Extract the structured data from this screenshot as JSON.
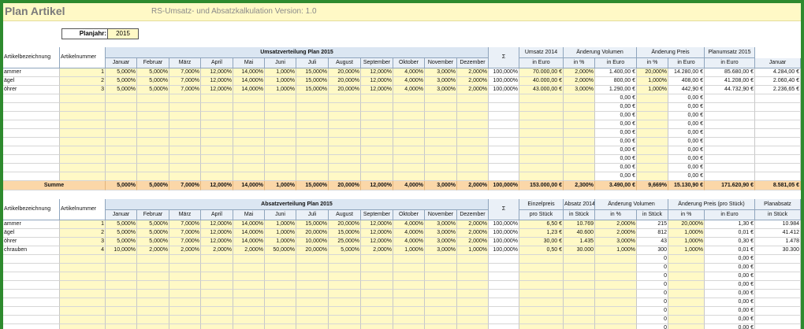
{
  "title": "Plan Artikel",
  "subtitle": "RS-Umsatz- und Absatzkalkulation Version:  1.0",
  "planjahr_label": "Planjahr:",
  "planjahr_value": "2015",
  "months": [
    "Januar",
    "Februar",
    "März",
    "April",
    "Mai",
    "Juni",
    "Juli",
    "August",
    "September",
    "Oktober",
    "November",
    "Dezember"
  ],
  "sigma": "Σ",
  "umsatz": {
    "header_title": "Umsatzverteilung Plan 2015",
    "col_artikel": "Artikelbezeichnung",
    "col_nummer": "Artikelnummer",
    "extra_top": [
      "Umsatz 2014",
      "Änderung Volumen",
      "Änderung Preis",
      "Planumsatz 2015"
    ],
    "extra_sub": [
      "in Euro",
      "in %",
      "in Euro",
      "in %",
      "in Euro",
      "in Euro",
      "Januar"
    ],
    "rows": [
      {
        "name": "ammer",
        "nr": "1",
        "m": [
          "5,000%",
          "5,000%",
          "7,000%",
          "12,000%",
          "14,000%",
          "1,000%",
          "15,000%",
          "20,000%",
          "12,000%",
          "4,000%",
          "3,000%",
          "2,000%"
        ],
        "total": "100,000%",
        "u2014": "70.000,00 €",
        "vol_pct": "2,000%",
        "vol_eur": "1.400,00 €",
        "preis_pct": "20,000%",
        "preis_eur": "14.280,00 €",
        "plan": "85.680,00 €",
        "jan": "4.284,00 €"
      },
      {
        "name": "ägel",
        "nr": "2",
        "m": [
          "5,000%",
          "5,000%",
          "7,000%",
          "12,000%",
          "14,000%",
          "1,000%",
          "15,000%",
          "20,000%",
          "12,000%",
          "4,000%",
          "3,000%",
          "2,000%"
        ],
        "total": "100,000%",
        "u2014": "40.000,00 €",
        "vol_pct": "2,000%",
        "vol_eur": "800,00 €",
        "preis_pct": "1,000%",
        "preis_eur": "408,00 €",
        "plan": "41.208,00 €",
        "jan": "2.060,40 €"
      },
      {
        "name": "öhrer",
        "nr": "3",
        "m": [
          "5,000%",
          "5,000%",
          "7,000%",
          "12,000%",
          "14,000%",
          "1,000%",
          "15,000%",
          "20,000%",
          "12,000%",
          "4,000%",
          "3,000%",
          "2,000%"
        ],
        "total": "100,000%",
        "u2014": "43.000,00 €",
        "vol_pct": "3,000%",
        "vol_eur": "1.290,00 €",
        "preis_pct": "1,000%",
        "preis_eur": "442,90 €",
        "plan": "44.732,90 €",
        "jan": "2.236,65 €"
      }
    ],
    "empty_vol_eur": "0,00 €",
    "empty_preis_eur": "0,00 €",
    "sum": {
      "label": "Summe",
      "m": [
        "5,000%",
        "5,000%",
        "7,000%",
        "12,000%",
        "14,000%",
        "1,000%",
        "15,000%",
        "20,000%",
        "12,000%",
        "4,000%",
        "3,000%",
        "2,000%"
      ],
      "total": "100,000%",
      "u2014": "153.000,00 €",
      "vol_pct": "2,300%",
      "vol_eur": "3.490,00 €",
      "preis_pct": "9,669%",
      "preis_eur": "15.130,90 €",
      "plan": "171.620,90 €",
      "jan": "8.581,05 €"
    }
  },
  "absatz": {
    "header_title": "Absatzverteilung Plan 2015",
    "col_artikel": "Artikelbezeichnung",
    "col_nummer": "Artikelnummer",
    "extra_top": [
      "Einzelpreis",
      "Absatz 2014",
      "Änderung Volumen",
      "Änderung Preis (pro Stück)",
      "Planabsatz"
    ],
    "extra_sub": [
      "pro Stück",
      "in Stück",
      "in %",
      "in Stück",
      "in %",
      "in Euro",
      "in Stück"
    ],
    "rows": [
      {
        "name": "ammer",
        "nr": "1",
        "m": [
          "5,000%",
          "5,000%",
          "7,000%",
          "12,000%",
          "14,000%",
          "1,000%",
          "15,000%",
          "20,000%",
          "12,000%",
          "4,000%",
          "3,000%",
          "2,000%"
        ],
        "total": "100,000%",
        "preis": "6,50 €",
        "a2014": "10.769",
        "vol_pct": "2,000%",
        "vol_st": "215",
        "p_pct": "20,000%",
        "p_eur": "1,30 €",
        "plan": "10.984"
      },
      {
        "name": "ägel",
        "nr": "2",
        "m": [
          "5,000%",
          "5,000%",
          "7,000%",
          "12,000%",
          "14,000%",
          "1,000%",
          "20,000%",
          "15,000%",
          "12,000%",
          "4,000%",
          "3,000%",
          "2,000%"
        ],
        "total": "100,000%",
        "preis": "1,23 €",
        "a2014": "40.600",
        "vol_pct": "2,000%",
        "vol_st": "812",
        "p_pct": "1,000%",
        "p_eur": "0,01 €",
        "plan": "41.412"
      },
      {
        "name": "öhrer",
        "nr": "3",
        "m": [
          "5,000%",
          "5,000%",
          "7,000%",
          "12,000%",
          "14,000%",
          "1,000%",
          "10,000%",
          "25,000%",
          "12,000%",
          "4,000%",
          "3,000%",
          "2,000%"
        ],
        "total": "100,000%",
        "preis": "30,00 €",
        "a2014": "1.435",
        "vol_pct": "3,000%",
        "vol_st": "43",
        "p_pct": "1,000%",
        "p_eur": "0,30 €",
        "plan": "1.478"
      },
      {
        "name": "chrauben",
        "nr": "4",
        "m": [
          "10,000%",
          "2,000%",
          "2,000%",
          "2,000%",
          "2,000%",
          "50,000%",
          "20,000%",
          "5,000%",
          "2,000%",
          "1,000%",
          "3,000%",
          "1,000%"
        ],
        "total": "100,000%",
        "preis": "0,50 €",
        "a2014": "30.000",
        "vol_pct": "1,000%",
        "vol_st": "300",
        "p_pct": "1,000%",
        "p_eur": "0,01 €",
        "plan": "30.300"
      }
    ],
    "empty_vol_st": "0",
    "empty_p_eur": "0,00 €"
  }
}
